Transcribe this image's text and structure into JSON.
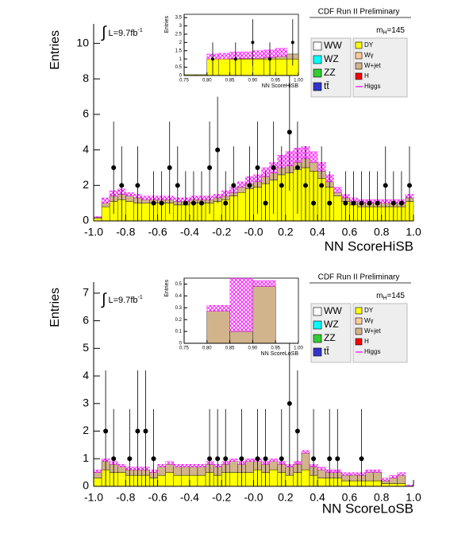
{
  "chart_data": [
    {
      "type": "histogram",
      "header": "CDF Run II Preliminary",
      "xlabel": "NN ScoreHiSB",
      "ylabel": "Entries",
      "lumi": [
        "∫",
        "L=9.7fb",
        "-1"
      ],
      "mass": [
        "m",
        "H",
        "=145"
      ],
      "bins": [
        -1,
        -0.95,
        -0.9,
        -0.85,
        -0.8,
        -0.75,
        -0.7,
        -0.65,
        -0.6,
        -0.55,
        -0.5,
        -0.45,
        -0.4,
        -0.35,
        -0.3,
        -0.25,
        -0.2,
        -0.15,
        -0.1,
        -0.05,
        0,
        0.05,
        0.1,
        0.15,
        0.2,
        0.25,
        0.3,
        0.35,
        0.4,
        0.45,
        0.5,
        0.55,
        0.6,
        0.65,
        0.7,
        0.75,
        0.8,
        0.85,
        0.9,
        0.95,
        1
      ],
      "xlim": [
        -1,
        1
      ],
      "ylim": [
        0,
        11.1
      ],
      "xticks": [
        {
          "value": -1,
          "label": "-1.0"
        },
        -0.8,
        -0.6,
        -0.4,
        -0.2,
        {
          "value": 0,
          "label": "-0.0"
        },
        0.2,
        0.4,
        0.6,
        0.8,
        {
          "value": 1,
          "label": "1.0"
        }
      ],
      "yticks": [
        0,
        2,
        4,
        6,
        8,
        10
      ],
      "series": [
        {
          "name": "DY",
          "color": "#ffff00",
          "values": [
            0.15,
            0.8,
            1.1,
            1.2,
            1.1,
            1.0,
            1.0,
            1.0,
            1.0,
            1.0,
            0.9,
            0.9,
            1.0,
            1.0,
            1.0,
            1.1,
            1.2,
            1.4,
            1.6,
            1.8,
            1.9,
            2.1,
            2.3,
            2.6,
            2.7,
            2.9,
            3.0,
            2.8,
            2.4,
            1.9,
            1.4,
            1.1,
            0.9,
            0.8,
            0.8,
            0.8,
            0.8,
            0.8,
            0.8,
            1.1
          ]
        },
        {
          "name": "W+jet",
          "color": "#d2b48c",
          "values": [
            0.05,
            0.2,
            0.3,
            0.3,
            0.3,
            0.3,
            0.2,
            0.2,
            0.2,
            0.2,
            0.2,
            0.2,
            0.2,
            0.2,
            0.2,
            0.2,
            0.2,
            0.2,
            0.3,
            0.3,
            0.3,
            0.4,
            0.4,
            0.4,
            0.4,
            0.4,
            0.5,
            0.5,
            0.4,
            0.3,
            0.2,
            0.2,
            0.2,
            0.2,
            0.2,
            0.2,
            0.2,
            0.2,
            0.2,
            0.2
          ]
        },
        {
          "name": "Higgs",
          "color": "#ff00ff",
          "hatch": true,
          "values": [
            0.05,
            0.3,
            0.3,
            0.3,
            0.2,
            0.2,
            0.2,
            0.2,
            0.2,
            0.2,
            0.2,
            0.2,
            0.2,
            0.2,
            0.2,
            0.2,
            0.3,
            0.3,
            0.3,
            0.4,
            0.4,
            0.5,
            0.6,
            0.7,
            0.8,
            0.8,
            0.7,
            0.6,
            0.5,
            0.4,
            0.3,
            0.2,
            0.2,
            0.2,
            0.2,
            0.2,
            0.2,
            0.2,
            0.2,
            0.2
          ]
        }
      ],
      "legend_extra": [
        {
          "name": "WW",
          "color": "#ffffff"
        },
        {
          "name": "WZ",
          "color": "#00ffff"
        },
        {
          "name": "ZZ",
          "color": "#33cc33"
        },
        {
          "name": "tt̄",
          "color": "#3333cc"
        },
        {
          "name": "Wγ",
          "color": "#ffcc99"
        },
        {
          "name": "H",
          "color": "#ff0000"
        }
      ],
      "points": {
        "x": [
          -0.875,
          -0.825,
          -0.725,
          -0.625,
          -0.575,
          -0.525,
          -0.475,
          -0.425,
          -0.375,
          -0.325,
          -0.275,
          -0.225,
          -0.175,
          -0.125,
          -0.025,
          0.025,
          0.075,
          0.125,
          0.175,
          0.225,
          0.275,
          0.325,
          0.375,
          0.425,
          0.475,
          0.575,
          0.625,
          0.675,
          0.725,
          0.775,
          0.825,
          0.875,
          0.925,
          0.975
        ],
        "values": [
          3,
          2,
          2,
          1,
          1,
          3,
          2,
          1,
          1,
          1,
          3,
          4,
          1,
          2,
          2,
          3,
          1,
          3,
          2,
          5,
          3,
          2,
          1,
          2,
          1,
          1,
          1,
          1,
          1,
          1,
          2,
          1,
          1,
          2
        ],
        "errors": [
          2.6,
          2.2,
          2.2,
          1.8,
          1.8,
          2.6,
          2.2,
          1.8,
          1.8,
          1.8,
          2.6,
          3,
          1.8,
          2.2,
          2.2,
          2.6,
          1.8,
          2.6,
          2.2,
          3.3,
          2.6,
          2.2,
          1.8,
          2.2,
          1.8,
          1.8,
          1.8,
          1.8,
          1.8,
          1.8,
          2.2,
          1.8,
          1.8,
          2.2
        ]
      },
      "inset": {
        "xlabel": "NN ScoreHiSB",
        "ylabel": "Entries",
        "bins": [
          0.75,
          0.775,
          0.8,
          0.825,
          0.85,
          0.875,
          0.9,
          0.925,
          0.95,
          0.975,
          1.0
        ],
        "xlim": [
          0.75,
          1
        ],
        "ylim": [
          0,
          3.7
        ],
        "xticks": [
          0.75,
          {
            "value": 0.8,
            "label": "0.80"
          },
          0.85,
          {
            "value": 0.9,
            "label": "0.90"
          },
          0.95,
          {
            "value": 1,
            "label": "1.00"
          }
        ],
        "yticks": [
          0,
          0.5,
          1,
          1.5,
          2,
          2.5,
          3,
          3.5
        ],
        "series": [
          {
            "color": "#ffff00",
            "values": [
              0.05,
              0.05,
              1.0,
              1.0,
              1.0,
              1.0,
              1.0,
              1.0,
              1.0,
              1.0
            ]
          },
          {
            "color": "#d2b48c",
            "values": [
              0,
              0,
              0,
              0,
              0.02,
              0.03,
              0.05,
              0.1,
              0.15,
              0.3
            ]
          },
          {
            "color": "#ff00ff",
            "hatch": true,
            "values": [
              0,
              0,
              0.3,
              0.35,
              0.4,
              0.4,
              0.45,
              0.45,
              0.5,
              0
            ]
          }
        ],
        "points": {
          "x": [
            0.8125,
            0.8625,
            0.9,
            0.9375,
            0.9875
          ],
          "values": [
            1,
            1,
            2,
            1,
            2
          ],
          "errors": [
            1,
            1,
            1.4,
            1,
            1.4
          ]
        }
      }
    },
    {
      "type": "histogram",
      "header": "CDF Run II Preliminary",
      "xlabel": "NN ScoreLoSB",
      "ylabel": "Entries",
      "lumi": [
        "∫",
        "L=9.7fb",
        "-1"
      ],
      "mass": [
        "m",
        "H",
        "=145"
      ],
      "bins": [
        -1,
        -0.95,
        -0.9,
        -0.85,
        -0.8,
        -0.75,
        -0.7,
        -0.65,
        -0.6,
        -0.55,
        -0.5,
        -0.45,
        -0.4,
        -0.35,
        -0.3,
        -0.25,
        -0.2,
        -0.15,
        -0.1,
        -0.05,
        0,
        0.05,
        0.1,
        0.15,
        0.2,
        0.25,
        0.3,
        0.35,
        0.4,
        0.45,
        0.5,
        0.55,
        0.6,
        0.65,
        0.7,
        0.75,
        0.8,
        0.85,
        0.9,
        0.95,
        1
      ],
      "xlim": [
        -1,
        1
      ],
      "ylim": [
        0,
        7.4
      ],
      "xticks": [
        {
          "value": -1,
          "label": "-1.0"
        },
        -0.8,
        -0.6,
        -0.4,
        -0.2,
        {
          "value": 0,
          "label": "-0.0"
        },
        0.2,
        0.4,
        0.6,
        0.8,
        {
          "value": 1,
          "label": "1.0"
        }
      ],
      "yticks": [
        0,
        1,
        2,
        3,
        4,
        5,
        6,
        7
      ],
      "series": [
        {
          "name": "DY",
          "color": "#ffff00",
          "values": [
            0.3,
            0.6,
            0.5,
            0.5,
            0.4,
            0.4,
            0.4,
            0.3,
            0.4,
            0.5,
            0.4,
            0.4,
            0.4,
            0.4,
            0.5,
            0.4,
            0.5,
            0.5,
            0.5,
            0.5,
            0.6,
            0.5,
            0.6,
            0.5,
            0.4,
            0.5,
            0.6,
            0.4,
            0.3,
            0.3,
            0.3,
            0.2,
            0.2,
            0.2,
            0.2,
            0.2,
            0.1,
            0.1,
            0.1,
            0
          ]
        },
        {
          "name": "W+jet",
          "color": "#d2b48c",
          "values": [
            0.2,
            0.3,
            0.3,
            0.2,
            0.2,
            0.2,
            0.2,
            0.2,
            0.3,
            0.3,
            0.3,
            0.3,
            0.3,
            0.3,
            0.3,
            0.3,
            0.3,
            0.4,
            0.3,
            0.4,
            0.3,
            0.3,
            0.3,
            0.3,
            0.3,
            0.3,
            0.6,
            0.3,
            0.3,
            0.2,
            0.2,
            0.2,
            0.2,
            0.2,
            0.3,
            0.3,
            0.1,
            0.2,
            0.3,
            0
          ]
        },
        {
          "name": "Higgs",
          "color": "#ff00ff",
          "hatch": true,
          "values": [
            0.1,
            0.1,
            0.1,
            0.1,
            0.1,
            0.1,
            0.1,
            0.1,
            0.1,
            0.1,
            0.1,
            0.1,
            0.1,
            0.1,
            0.1,
            0.1,
            0.1,
            0.1,
            0.1,
            0.1,
            0.1,
            0.1,
            0.1,
            0.1,
            0.1,
            0.1,
            0.1,
            0.1,
            0.1,
            0.1,
            0.1,
            0.1,
            0.1,
            0.1,
            0.1,
            0.1,
            0.1,
            0.1,
            0.1,
            0.05
          ]
        }
      ],
      "legend_extra": [
        {
          "name": "WW",
          "color": "#ffffff"
        },
        {
          "name": "WZ",
          "color": "#00ffff"
        },
        {
          "name": "ZZ",
          "color": "#33cc33"
        },
        {
          "name": "tt̄",
          "color": "#3333cc"
        },
        {
          "name": "Wγ",
          "color": "#ffcc99"
        },
        {
          "name": "H",
          "color": "#ff0000"
        }
      ],
      "points": {
        "x": [
          -0.925,
          -0.875,
          -0.775,
          -0.725,
          -0.675,
          -0.625,
          -0.275,
          -0.225,
          -0.175,
          -0.075,
          0.025,
          0.075,
          0.175,
          0.225,
          0.275,
          0.375,
          0.475,
          0.525,
          0.675
        ],
        "values": [
          2,
          1,
          1,
          2,
          2,
          1,
          1,
          1,
          1,
          1,
          1,
          1,
          1,
          3,
          2,
          1,
          1,
          1,
          1
        ],
        "errors": [
          2.2,
          1.8,
          1.8,
          2.2,
          2.2,
          1.8,
          1.8,
          1.8,
          1.8,
          1.8,
          1.8,
          1.8,
          1.8,
          2.6,
          2.2,
          1.8,
          1.8,
          1.8,
          1.8
        ]
      },
      "inset": {
        "xlabel": "NN ScoreLoSB",
        "ylabel": "Entries",
        "bins": [
          0.75,
          0.8,
          0.85,
          0.9,
          0.95,
          1.0
        ],
        "xlim": [
          0.75,
          1
        ],
        "ylim": [
          0,
          0.55
        ],
        "xticks": [
          0.75,
          {
            "value": 0.8,
            "label": "0.80"
          },
          0.85,
          {
            "value": 0.9,
            "label": "0.90"
          },
          0.95,
          {
            "value": 1,
            "label": "1.00"
          }
        ],
        "yticks": [
          0,
          0.1,
          0.2,
          0.3,
          0.4,
          0.5
        ],
        "series": [
          {
            "color": "#d2b48c",
            "values": [
              0,
              0.27,
              0.1,
              0.48,
              0
            ]
          },
          {
            "color": "#ff00ff",
            "hatch": true,
            "values": [
              0,
              0.05,
              0.45,
              0.05,
              0
            ]
          }
        ]
      }
    }
  ]
}
